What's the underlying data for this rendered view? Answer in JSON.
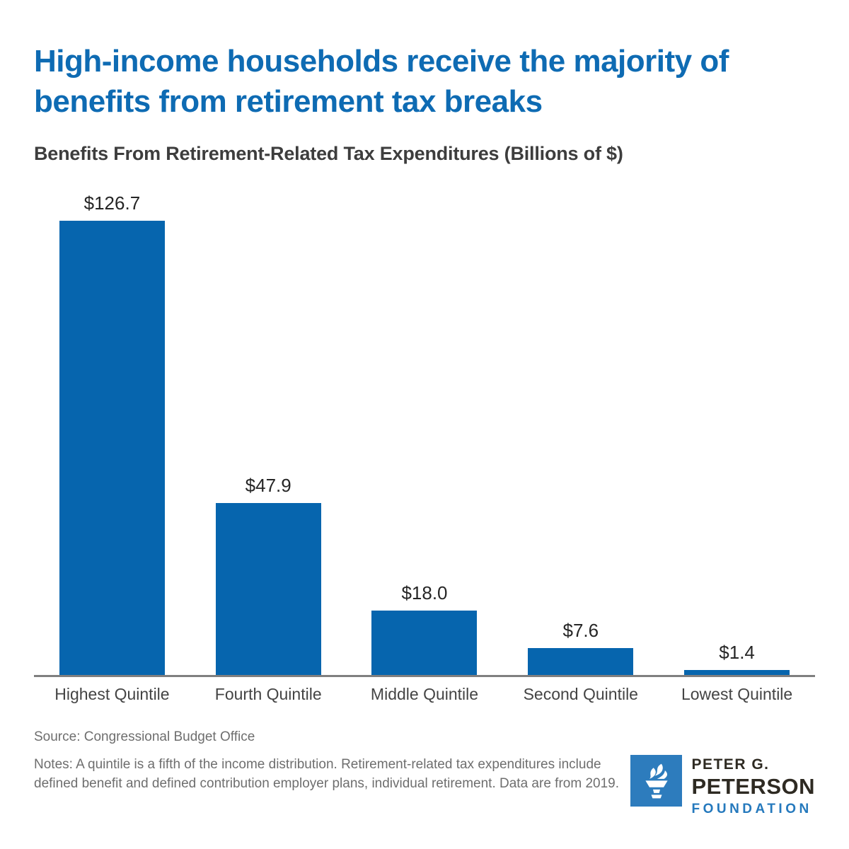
{
  "header": {
    "title_lines": [
      "High-income households receive the majority of",
      "benefits from retirement tax breaks"
    ]
  },
  "chart_data": {
    "type": "bar",
    "title": "Benefits From Retirement-Related Tax Expenditures (Billions of $)",
    "categories": [
      "Highest Quintile",
      "Fourth Quintile",
      "Middle Quintile",
      "Second Quintile",
      "Lowest Quintile"
    ],
    "values": [
      126.7,
      47.9,
      18.0,
      7.6,
      1.4
    ],
    "value_labels": [
      "$126.7",
      "$47.9",
      "$18.0",
      "$7.6",
      "$1.4"
    ],
    "xlabel": "",
    "ylabel": "",
    "ylim": [
      0,
      130
    ],
    "grid": false,
    "legend": "none",
    "bar_color": "#0665ae",
    "axis_color": "#7f7f7f"
  },
  "footer": {
    "source": "Source: Congressional Budget Office",
    "notes": "Notes: A quintile is a fifth of the income distribution. Retirement-related tax expenditures include defined benefit and defined contribution employer plans, individual retirement. Data are from 2019."
  },
  "logo": {
    "line1": "PETER G.",
    "line2": "PETERSON",
    "line3": "FOUNDATION",
    "icon": "torch-icon"
  },
  "colors": {
    "title_blue": "#0e6bb3",
    "bar_blue": "#0665ae",
    "logo_square_blue": "#2d7cbd",
    "foundation_blue": "#2579bd",
    "text_dark": "#262626",
    "text_muted": "#6e6e6e"
  }
}
